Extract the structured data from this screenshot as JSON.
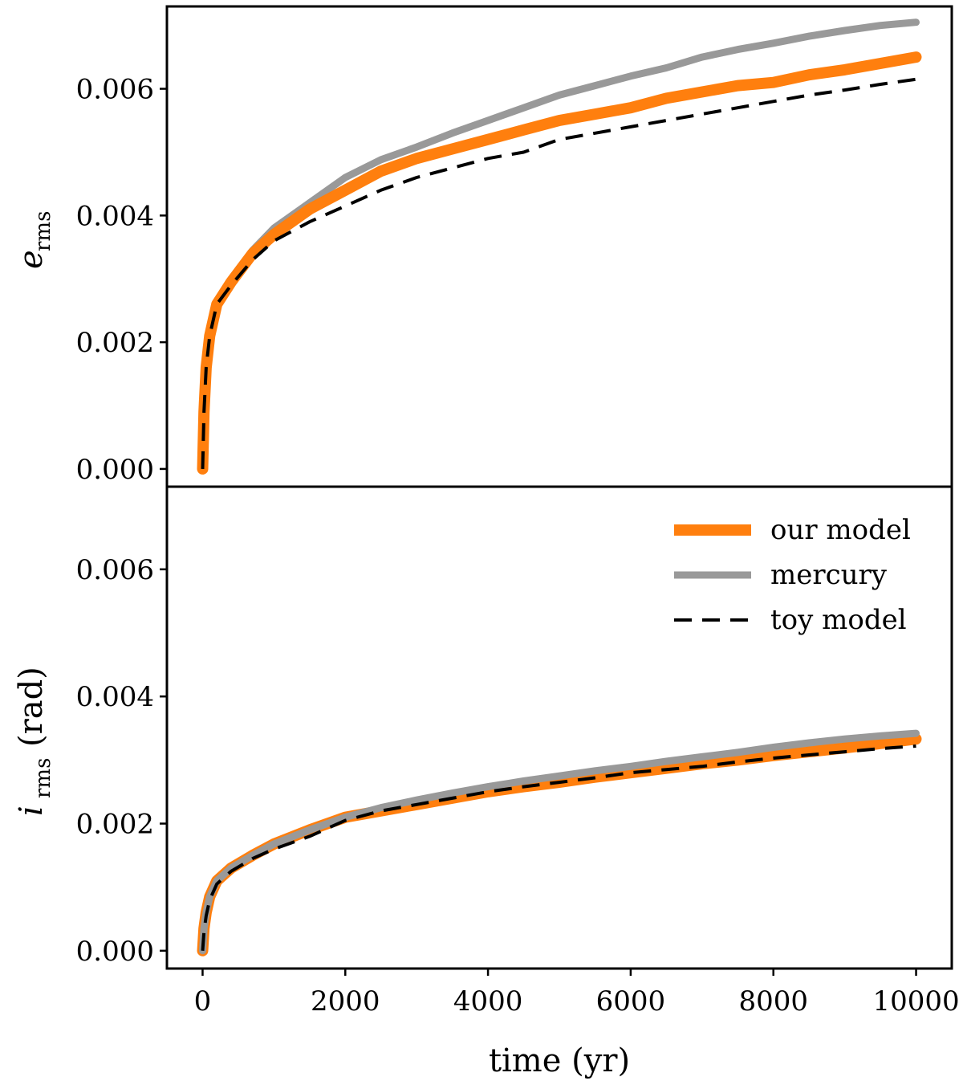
{
  "chart_data": [
    {
      "type": "line",
      "panel": "top",
      "ylabel_main": "e",
      "ylabel_sub": "rms",
      "ylabel_suffix": "",
      "xlabel": "",
      "xlim": [
        -500,
        10500
      ],
      "ylim": [
        -0.00028,
        0.0073
      ],
      "yticks": [
        0.0,
        0.002,
        0.004,
        0.006
      ],
      "ytick_labels": [
        "0.000",
        "0.002",
        "0.004",
        "0.006"
      ],
      "xticks": [],
      "xtick_labels": [],
      "series": [
        {
          "name": "mercury",
          "style": "solid-thick",
          "color": "#999999",
          "x": [
            0,
            20,
            50,
            100,
            200,
            400,
            700,
            1000,
            1500,
            2000,
            2500,
            3000,
            3500,
            4000,
            4500,
            5000,
            5500,
            6000,
            6500,
            7000,
            7500,
            8000,
            8500,
            9000,
            9500,
            10000
          ],
          "y": [
            0.0,
            0.0009,
            0.0016,
            0.0021,
            0.0026,
            0.003,
            0.00345,
            0.0038,
            0.0042,
            0.0046,
            0.00488,
            0.00508,
            0.0053,
            0.0055,
            0.0057,
            0.0059,
            0.00605,
            0.0062,
            0.00633,
            0.0065,
            0.00662,
            0.00672,
            0.00683,
            0.00692,
            0.007,
            0.00705
          ]
        },
        {
          "name": "our model",
          "style": "solid-thicker",
          "color": "#ff7f0e",
          "x": [
            0,
            20,
            50,
            100,
            200,
            400,
            700,
            1000,
            1500,
            2000,
            2500,
            3000,
            3500,
            4000,
            4500,
            5000,
            5500,
            6000,
            6500,
            7000,
            7500,
            8000,
            8500,
            9000,
            9500,
            10000
          ],
          "y": [
            0.0,
            0.0009,
            0.0016,
            0.0021,
            0.0026,
            0.00295,
            0.0034,
            0.0037,
            0.0041,
            0.0044,
            0.0047,
            0.0049,
            0.00505,
            0.0052,
            0.00535,
            0.0055,
            0.0056,
            0.0057,
            0.00585,
            0.00595,
            0.00605,
            0.0061,
            0.00622,
            0.0063,
            0.0064,
            0.0065
          ]
        },
        {
          "name": "toy model",
          "style": "dashed",
          "color": "#000000",
          "x": [
            0,
            20,
            50,
            100,
            200,
            400,
            700,
            1000,
            1500,
            2000,
            2500,
            3000,
            3500,
            4000,
            4500,
            5000,
            5500,
            6000,
            6500,
            7000,
            7500,
            8000,
            8500,
            9000,
            9500,
            10000
          ],
          "y": [
            0.0,
            0.0009,
            0.0016,
            0.0021,
            0.0026,
            0.0029,
            0.0033,
            0.0036,
            0.0039,
            0.00415,
            0.0044,
            0.0046,
            0.00475,
            0.0049,
            0.005,
            0.0052,
            0.0053,
            0.0054,
            0.0055,
            0.0056,
            0.0057,
            0.0058,
            0.0059,
            0.00598,
            0.00607,
            0.00615
          ]
        }
      ]
    },
    {
      "type": "line",
      "panel": "bottom",
      "ylabel_main": "i",
      "ylabel_sub": "rms",
      "ylabel_suffix": "(rad)",
      "xlabel": "time (yr)",
      "xlim": [
        -500,
        10500
      ],
      "ylim": [
        -0.00028,
        0.0073
      ],
      "yticks": [
        0.0,
        0.002,
        0.004,
        0.006
      ],
      "ytick_labels": [
        "0.000",
        "0.002",
        "0.004",
        "0.006"
      ],
      "xticks": [
        0,
        2000,
        4000,
        6000,
        8000,
        10000
      ],
      "xtick_labels": [
        "0",
        "2000",
        "4000",
        "6000",
        "8000",
        "10000"
      ],
      "legend": {
        "placement": "top-right",
        "entries": [
          "our model",
          "mercury",
          "toy model"
        ]
      },
      "series": [
        {
          "name": "our model",
          "style": "solid-thicker",
          "color": "#ff7f0e",
          "x": [
            0,
            20,
            50,
            100,
            200,
            400,
            700,
            1000,
            1500,
            2000,
            2500,
            3000,
            3500,
            4000,
            4500,
            5000,
            5500,
            6000,
            6500,
            7000,
            7500,
            8000,
            8500,
            9000,
            9500,
            10000
          ],
          "y": [
            0.0,
            0.00035,
            0.0006,
            0.00085,
            0.0011,
            0.0013,
            0.0015,
            0.00168,
            0.0019,
            0.0021,
            0.0022,
            0.0023,
            0.0024,
            0.0025,
            0.00258,
            0.00265,
            0.00273,
            0.0028,
            0.00287,
            0.00294,
            0.003,
            0.00307,
            0.00313,
            0.00319,
            0.00326,
            0.00333
          ]
        },
        {
          "name": "mercury",
          "style": "solid-thick",
          "color": "#999999",
          "x": [
            0,
            20,
            50,
            100,
            200,
            400,
            700,
            1000,
            1500,
            2000,
            2500,
            3000,
            3500,
            4000,
            4500,
            5000,
            5500,
            6000,
            6500,
            7000,
            7500,
            8000,
            8500,
            9000,
            9500,
            10000
          ],
          "y": [
            0.0,
            0.00035,
            0.0006,
            0.00085,
            0.0011,
            0.0013,
            0.0015,
            0.00168,
            0.0019,
            0.0021,
            0.00225,
            0.00237,
            0.00248,
            0.00258,
            0.00267,
            0.00275,
            0.00283,
            0.0029,
            0.00298,
            0.00305,
            0.00312,
            0.0032,
            0.00327,
            0.00333,
            0.00338,
            0.00342
          ]
        },
        {
          "name": "toy model",
          "style": "dashed",
          "color": "#000000",
          "x": [
            0,
            20,
            50,
            100,
            200,
            400,
            700,
            1000,
            1500,
            2000,
            2500,
            3000,
            3500,
            4000,
            4500,
            5000,
            5500,
            6000,
            6500,
            7000,
            7500,
            8000,
            8500,
            9000,
            9500,
            10000
          ],
          "y": [
            0.0,
            0.0003,
            0.00055,
            0.0008,
            0.00105,
            0.00125,
            0.00145,
            0.0016,
            0.0018,
            0.00205,
            0.0022,
            0.0023,
            0.0024,
            0.0025,
            0.00258,
            0.00265,
            0.00272,
            0.0028,
            0.00285,
            0.0029,
            0.00297,
            0.00303,
            0.00308,
            0.00313,
            0.00318,
            0.00322
          ]
        }
      ]
    }
  ]
}
